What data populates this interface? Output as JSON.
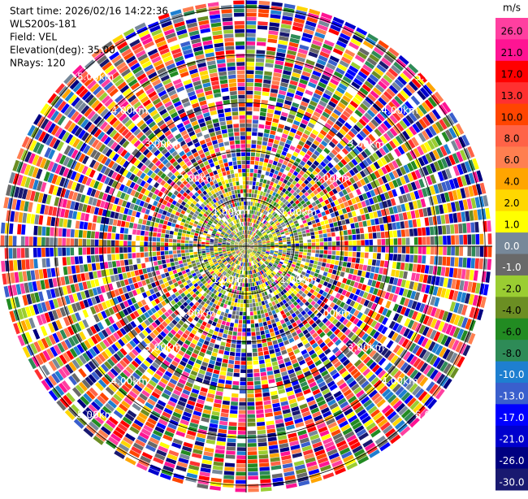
{
  "chart_data": {
    "type": "ppi",
    "info": [
      "Start time: 2026/02/16 14:22:36",
      "WLS200s-181",
      "Field: VEL",
      "Elevation(deg): 35.00",
      "NRays: 120"
    ],
    "rlim": [
      0,
      5.15
    ],
    "rings": [
      {
        "value": 1,
        "label": "1.00km"
      },
      {
        "value": 2,
        "label": "2.00km"
      },
      {
        "value": 3,
        "label": "3.00km"
      },
      {
        "value": 4,
        "label": "4.00km"
      },
      {
        "value": 5,
        "label": "5.00km"
      }
    ],
    "colorbar": {
      "unit": "m/s",
      "ticks": [
        {
          "value": 26,
          "label": "26.0"
        },
        {
          "value": 21,
          "label": "21.0"
        },
        {
          "value": 17,
          "label": "17.0"
        },
        {
          "value": 13,
          "label": "13.0"
        },
        {
          "value": 10,
          "label": "10.0"
        },
        {
          "value": 8,
          "label": "8.0"
        },
        {
          "value": 6,
          "label": "6.0"
        },
        {
          "value": 4,
          "label": "4.0"
        },
        {
          "value": 2,
          "label": "2.0"
        },
        {
          "value": 1,
          "label": "1.0"
        },
        {
          "value": 0,
          "label": "0.0"
        },
        {
          "value": -1,
          "label": "-1.0"
        },
        {
          "value": -2,
          "label": "-2.0"
        },
        {
          "value": -4,
          "label": "-4.0"
        },
        {
          "value": -6,
          "label": "-6.0"
        },
        {
          "value": -8,
          "label": "-8.0"
        },
        {
          "value": -10,
          "label": "-10.0"
        },
        {
          "value": -13,
          "label": "-13.0"
        },
        {
          "value": -17,
          "label": "-17.0"
        },
        {
          "value": -21,
          "label": "-21.0"
        },
        {
          "value": -26,
          "label": "-26.0"
        },
        {
          "value": -30,
          "label": "-30.0"
        }
      ],
      "colors": [
        "#ff3fa0",
        "#ff1493",
        "#ff0000",
        "#ff3030",
        "#ff4500",
        "#ff6347",
        "#ff7f50",
        "#ffa500",
        "#ffd700",
        "#ffff00",
        "#778899",
        "#696969",
        "#9acd32",
        "#6b8e23",
        "#228b22",
        "#2e8b57",
        "#1e7fd0",
        "#3a5fcd",
        "#0000ff",
        "#0000cd",
        "#000080",
        "#191970"
      ]
    }
  }
}
